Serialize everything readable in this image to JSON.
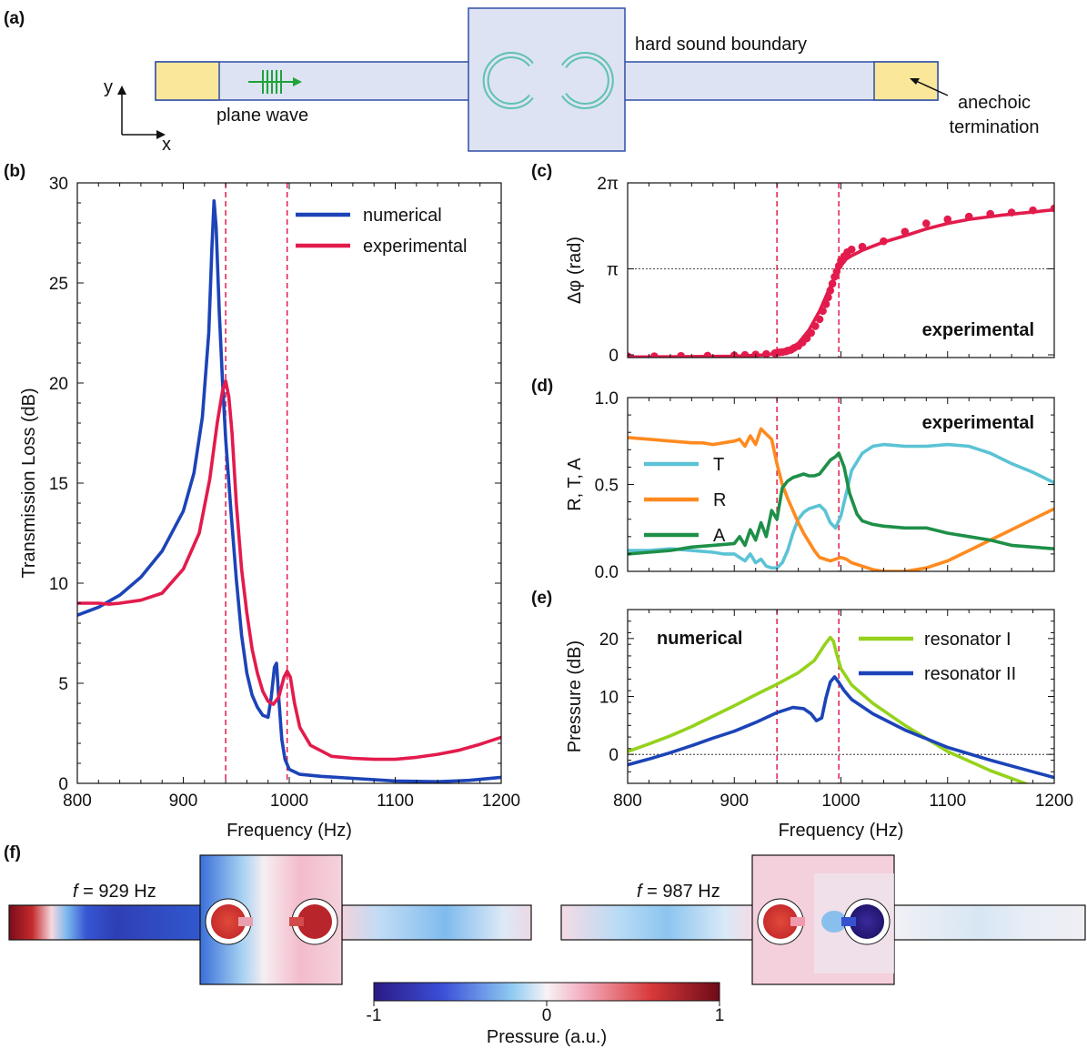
{
  "panel_labels": {
    "a": "(a)",
    "b": "(b)",
    "c": "(c)",
    "d": "(d)",
    "e": "(e)",
    "f": "(f)"
  },
  "schematic": {
    "hard_boundary": "hard sound boundary",
    "plane_wave": "plane wave",
    "anechoic_1": "anechoic",
    "anechoic_2": "termination",
    "axis_y": "y",
    "axis_x": "x",
    "colors": {
      "duct": "#dde3f2",
      "edge": "#2f4fa8",
      "absorber": "#fbe79a",
      "resonator": "#5ec2b0",
      "wave": "#1fa33a"
    }
  },
  "chart_data": [
    {
      "id": "b",
      "type": "line",
      "xlabel": "Frequency (Hz)",
      "ylabel": "Transmission Loss (dB)",
      "xlim": [
        800,
        1200
      ],
      "ylim": [
        0,
        30
      ],
      "xticks": [
        "800",
        "900",
        "1000",
        "1100",
        "1200"
      ],
      "yticks": [
        "0",
        "5",
        "10",
        "15",
        "20",
        "25",
        "30"
      ],
      "vlines": [
        940,
        998
      ],
      "legend_position": "top-right",
      "series": [
        {
          "name": "numerical",
          "color": "#1c44b8",
          "x": [
            800,
            820,
            840,
            860,
            880,
            900,
            910,
            918,
            924,
            927,
            929,
            931,
            934,
            937,
            940,
            945,
            950,
            955,
            960,
            965,
            970,
            975,
            980,
            983,
            986,
            988,
            990,
            993,
            996,
            1000,
            1010,
            1030,
            1060,
            1100,
            1140,
            1170,
            1200
          ],
          "y": [
            8.4,
            8.8,
            9.4,
            10.3,
            11.6,
            13.6,
            15.5,
            18.3,
            22.5,
            26.8,
            29.1,
            27.8,
            23.5,
            20.1,
            17.2,
            13.6,
            10.2,
            7.4,
            5.5,
            4.4,
            3.8,
            3.4,
            3.3,
            4.3,
            5.8,
            6.0,
            4.3,
            2.2,
            1.2,
            0.7,
            0.45,
            0.35,
            0.25,
            0.12,
            0.08,
            0.15,
            0.3
          ]
        },
        {
          "name": "experimental",
          "color": "#e31b4c",
          "x": [
            800,
            820,
            830,
            840,
            860,
            880,
            900,
            915,
            925,
            932,
            937,
            940,
            943,
            946,
            950,
            955,
            960,
            965,
            970,
            975,
            980,
            985,
            990,
            995,
            998,
            1001,
            1005,
            1010,
            1020,
            1040,
            1060,
            1080,
            1100,
            1120,
            1140,
            1160,
            1180,
            1200
          ],
          "y": [
            9.0,
            9.0,
            8.95,
            9.0,
            9.15,
            9.5,
            10.7,
            12.5,
            15.2,
            18.0,
            19.6,
            20.1,
            19.3,
            17.5,
            14.0,
            10.7,
            8.5,
            6.7,
            5.5,
            4.6,
            4.1,
            3.95,
            4.3,
            5.3,
            5.6,
            5.3,
            4.0,
            2.8,
            1.9,
            1.35,
            1.25,
            1.2,
            1.2,
            1.3,
            1.45,
            1.65,
            1.95,
            2.3
          ]
        }
      ]
    },
    {
      "id": "c",
      "type": "line",
      "ylabel": "Δφ (rad)",
      "xlim": [
        800,
        1200
      ],
      "ylim": [
        -0.1,
        6.283
      ],
      "yticks": [
        "0",
        "π",
        "2π"
      ],
      "vlines": [
        940,
        998
      ],
      "annotation": "experimental",
      "series": [
        {
          "name": "",
          "color": "#e31b4c",
          "kind": "line",
          "x": [
            800,
            850,
            900,
            920,
            930,
            940,
            950,
            960,
            970,
            980,
            990,
            995,
            1000,
            1005,
            1010,
            1020,
            1040,
            1060,
            1080,
            1100,
            1120,
            1150,
            1200
          ],
          "y": [
            -0.08,
            -0.07,
            -0.05,
            -0.02,
            0.0,
            0.06,
            0.18,
            0.42,
            0.9,
            1.6,
            2.5,
            2.95,
            3.25,
            3.5,
            3.62,
            3.82,
            4.12,
            4.35,
            4.6,
            4.8,
            4.95,
            5.1,
            5.3
          ]
        },
        {
          "name": "",
          "color": "#e31b4c",
          "kind": "points",
          "x": [
            800,
            825,
            850,
            875,
            900,
            910,
            920,
            930,
            938,
            940,
            942,
            945,
            948,
            950,
            953,
            956,
            960,
            964,
            968,
            972,
            976,
            980,
            983,
            986,
            988,
            990,
            992,
            994,
            996,
            998,
            1000,
            1003,
            1006,
            1010,
            1020,
            1040,
            1060,
            1080,
            1100,
            1120,
            1140,
            1160,
            1180,
            1200
          ],
          "y": [
            -0.05,
            -0.05,
            -0.04,
            -0.03,
            -0.02,
            0.0,
            0.01,
            0.03,
            0.06,
            0.08,
            0.09,
            0.1,
            0.12,
            0.15,
            0.18,
            0.25,
            0.32,
            0.45,
            0.6,
            0.8,
            1.05,
            1.3,
            1.6,
            1.85,
            2.1,
            2.35,
            2.6,
            2.85,
            3.05,
            3.25,
            3.45,
            3.6,
            3.75,
            3.85,
            3.95,
            4.15,
            4.5,
            4.8,
            4.95,
            5.05,
            5.15,
            5.2,
            5.28,
            5.35
          ]
        }
      ]
    },
    {
      "id": "d",
      "type": "line",
      "ylabel": "R, T, A",
      "xlim": [
        800,
        1200
      ],
      "ylim": [
        0,
        1
      ],
      "yticks": [
        "0.0",
        "0.5",
        "1.0"
      ],
      "vlines": [
        940,
        998
      ],
      "annotation": "experimental",
      "legend_position": "left",
      "series": [
        {
          "name": "T",
          "color": "#5bc3d5",
          "x": [
            800,
            820,
            840,
            860,
            880,
            890,
            900,
            905,
            910,
            915,
            920,
            925,
            930,
            935,
            940,
            945,
            950,
            955,
            960,
            965,
            970,
            975,
            980,
            985,
            990,
            995,
            1000,
            1005,
            1010,
            1020,
            1030,
            1040,
            1060,
            1080,
            1100,
            1120,
            1130,
            1140,
            1160,
            1180,
            1200
          ],
          "y": [
            0.12,
            0.12,
            0.13,
            0.12,
            0.11,
            0.1,
            0.1,
            0.08,
            0.06,
            0.1,
            0.05,
            0.07,
            0.03,
            0.02,
            0.02,
            0.05,
            0.12,
            0.22,
            0.3,
            0.34,
            0.36,
            0.37,
            0.38,
            0.35,
            0.28,
            0.25,
            0.32,
            0.45,
            0.58,
            0.68,
            0.72,
            0.73,
            0.72,
            0.72,
            0.73,
            0.72,
            0.7,
            0.68,
            0.62,
            0.57,
            0.51
          ]
        },
        {
          "name": "R",
          "color": "#ff8a1f",
          "x": [
            800,
            820,
            840,
            860,
            870,
            880,
            890,
            900,
            905,
            910,
            915,
            920,
            925,
            930,
            935,
            940,
            945,
            950,
            955,
            960,
            965,
            970,
            975,
            980,
            985,
            990,
            995,
            1000,
            1005,
            1010,
            1020,
            1030,
            1040,
            1060,
            1080,
            1100,
            1120,
            1140,
            1160,
            1180,
            1200
          ],
          "y": [
            0.77,
            0.76,
            0.75,
            0.74,
            0.74,
            0.73,
            0.74,
            0.75,
            0.76,
            0.72,
            0.78,
            0.73,
            0.82,
            0.79,
            0.76,
            0.62,
            0.5,
            0.42,
            0.35,
            0.28,
            0.22,
            0.17,
            0.12,
            0.08,
            0.07,
            0.06,
            0.07,
            0.08,
            0.07,
            0.05,
            0.03,
            0.01,
            0.0,
            0.0,
            0.02,
            0.06,
            0.12,
            0.18,
            0.24,
            0.3,
            0.36
          ]
        },
        {
          "name": "A",
          "color": "#1e8f48",
          "x": [
            800,
            820,
            840,
            860,
            880,
            900,
            905,
            910,
            915,
            920,
            925,
            930,
            935,
            940,
            945,
            950,
            955,
            960,
            965,
            970,
            975,
            980,
            985,
            990,
            995,
            998,
            1003,
            1008,
            1015,
            1020,
            1030,
            1040,
            1060,
            1080,
            1100,
            1120,
            1140,
            1160,
            1180,
            1200
          ],
          "y": [
            0.1,
            0.11,
            0.12,
            0.14,
            0.15,
            0.16,
            0.2,
            0.15,
            0.24,
            0.18,
            0.28,
            0.2,
            0.35,
            0.3,
            0.48,
            0.52,
            0.54,
            0.55,
            0.56,
            0.55,
            0.55,
            0.56,
            0.6,
            0.64,
            0.66,
            0.68,
            0.6,
            0.45,
            0.33,
            0.29,
            0.27,
            0.26,
            0.25,
            0.25,
            0.22,
            0.2,
            0.18,
            0.15,
            0.14,
            0.13
          ]
        }
      ]
    },
    {
      "id": "e",
      "type": "line",
      "xlabel": "Frequency (Hz)",
      "ylabel": "Pressure (dB)",
      "xlim": [
        800,
        1200
      ],
      "ylim": [
        -5,
        25
      ],
      "xticks": [
        "800",
        "900",
        "1000",
        "1100",
        "1200"
      ],
      "yticks": [
        "0",
        "10",
        "20"
      ],
      "vlines": [
        940,
        998
      ],
      "hline": 0,
      "annotation": "numerical",
      "legend_position": "top-right",
      "series": [
        {
          "name": "resonator I",
          "color": "#95d21c",
          "x": [
            800,
            820,
            840,
            860,
            880,
            900,
            920,
            940,
            960,
            975,
            985,
            990,
            993,
            996,
            1000,
            1010,
            1030,
            1060,
            1100,
            1140,
            1180,
            1200
          ],
          "y": [
            0.5,
            1.8,
            3.2,
            4.8,
            6.6,
            8.4,
            10.3,
            12.1,
            14.1,
            16.2,
            19.0,
            20.2,
            19.5,
            17.3,
            14.8,
            12.0,
            8.8,
            5.0,
            0.5,
            -2.8,
            -5.5,
            -6.5
          ]
        },
        {
          "name": "resonator II",
          "color": "#1c44b8",
          "x": [
            800,
            820,
            840,
            860,
            880,
            900,
            920,
            940,
            955,
            965,
            972,
            977,
            982,
            986,
            990,
            994,
            998,
            1003,
            1010,
            1030,
            1060,
            1100,
            1140,
            1180,
            1200
          ],
          "y": [
            -1.8,
            -0.8,
            0.3,
            1.5,
            2.8,
            4.0,
            5.5,
            7.2,
            8.1,
            7.9,
            7.0,
            5.8,
            6.3,
            9.8,
            12.5,
            13.4,
            12.4,
            11.0,
            9.5,
            7.0,
            4.2,
            1.2,
            -1.0,
            -3.0,
            -4.0
          ]
        }
      ]
    }
  ],
  "field_maps": {
    "left_label_var": "f",
    "left_label_value": " = 929 Hz",
    "right_label_var": "f",
    "right_label_value": " = 987 Hz"
  },
  "colorbar": {
    "min_label": "-1",
    "mid_label": "0",
    "max_label": "1",
    "title": "Pressure (a.u.)"
  }
}
